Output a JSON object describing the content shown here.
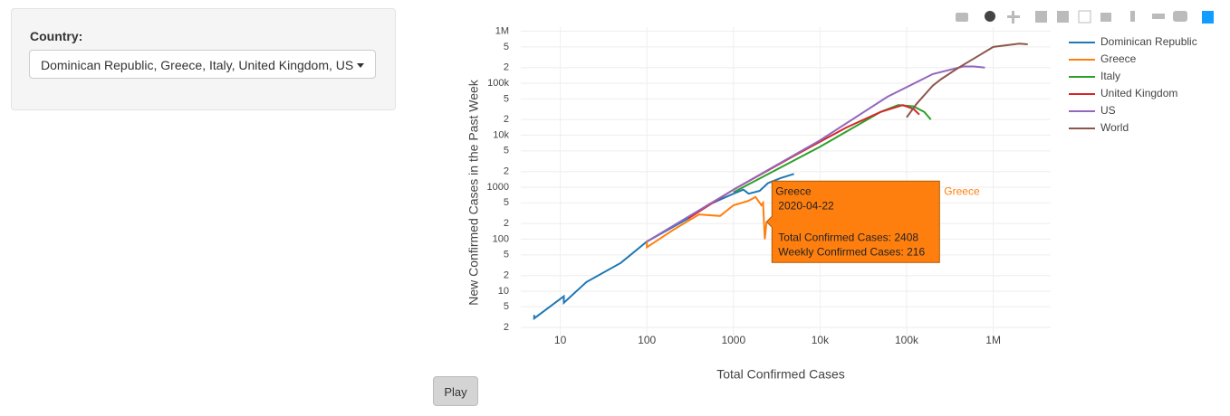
{
  "sidebar": {
    "label": "Country:",
    "selected": "Dominican Republic, Greece, Italy, United Kingdom, US"
  },
  "play_button": "Play",
  "chart_data": {
    "type": "line",
    "x_label": "Total Confirmed Cases",
    "y_label": "New Confirmed Cases in the Past Week",
    "log_x": true,
    "log_y": true,
    "grid": true,
    "xlim": [
      3.5,
      4600000
    ],
    "ylim": [
      1.35,
      1200000
    ],
    "xticks": [
      10,
      100,
      1000,
      {
        "value": 10000,
        "label": "10k"
      },
      {
        "value": 100000,
        "label": "100k"
      },
      {
        "value": 1000000,
        "label": "1M"
      }
    ],
    "yticks": [
      2,
      5,
      10,
      {
        "value": 20,
        "label": "2"
      },
      {
        "value": 50,
        "label": "5"
      },
      100,
      {
        "value": 200,
        "label": "2"
      },
      {
        "value": 500,
        "label": "5"
      },
      1000,
      {
        "value": 2000,
        "label": "2"
      },
      {
        "value": 5000,
        "label": "5"
      },
      {
        "value": 10000,
        "label": "10k"
      },
      {
        "value": 20000,
        "label": "2"
      },
      {
        "value": 50000,
        "label": "5"
      },
      {
        "value": 100000,
        "label": "100k"
      },
      {
        "value": 200000,
        "label": "2"
      },
      {
        "value": 500000,
        "label": "5"
      },
      {
        "value": 1000000,
        "label": "1M"
      }
    ],
    "legend": "right",
    "series": [
      {
        "name": "Dominican Republic",
        "color": "#1f77b4",
        "x": [
          5,
          5,
          11,
          11,
          20,
          50,
          100,
          300,
          500,
          1000,
          1300,
          1500,
          2000,
          2500,
          3500,
          5000
        ],
        "values": [
          3.5,
          3,
          8,
          6,
          15,
          35,
          90,
          250,
          450,
          750,
          900,
          750,
          850,
          1200,
          1500,
          1800
        ]
      },
      {
        "name": "Greece",
        "color": "#ff7f0e",
        "x": [
          100,
          100,
          200,
          400,
          700,
          1000,
          1500,
          1800,
          2100,
          2200,
          2300,
          2408
        ],
        "values": [
          90,
          70,
          150,
          300,
          280,
          450,
          550,
          650,
          450,
          500,
          100,
          216
        ]
      },
      {
        "name": "Italy",
        "color": "#2ca02c",
        "x": [
          1000,
          10000,
          50000,
          80000,
          120000,
          160000,
          190000
        ],
        "values": [
          800,
          6000,
          28000,
          38000,
          36000,
          28000,
          20000
        ]
      },
      {
        "name": "United Kingdom",
        "color": "#d62728",
        "x": [
          300,
          1000,
          5000,
          20000,
          50000,
          90000,
          120000,
          140000
        ],
        "values": [
          250,
          900,
          4000,
          14000,
          28000,
          38000,
          32000,
          25000
        ]
      },
      {
        "name": "US",
        "color": "#9467bd",
        "x": [
          100,
          1000,
          10000,
          60000,
          200000,
          450000,
          600000,
          800000
        ],
        "values": [
          90,
          900,
          8000,
          55000,
          150000,
          210000,
          210000,
          200000
        ]
      },
      {
        "name": "World",
        "color": "#8c564b",
        "x": [
          100000,
          130000,
          200000,
          250000,
          400000,
          700000,
          1000000,
          2000000,
          2500000
        ],
        "values": [
          22000,
          40000,
          90000,
          120000,
          200000,
          350000,
          500000,
          580000,
          560000
        ]
      }
    ],
    "hover": {
      "series": 1,
      "point": 11,
      "name": "Greece",
      "date": "2020-04-22",
      "total": "Total Confirmed Cases: 2408",
      "weekly": "Weekly Confirmed Cases: 216",
      "side_label": "Greece"
    }
  }
}
